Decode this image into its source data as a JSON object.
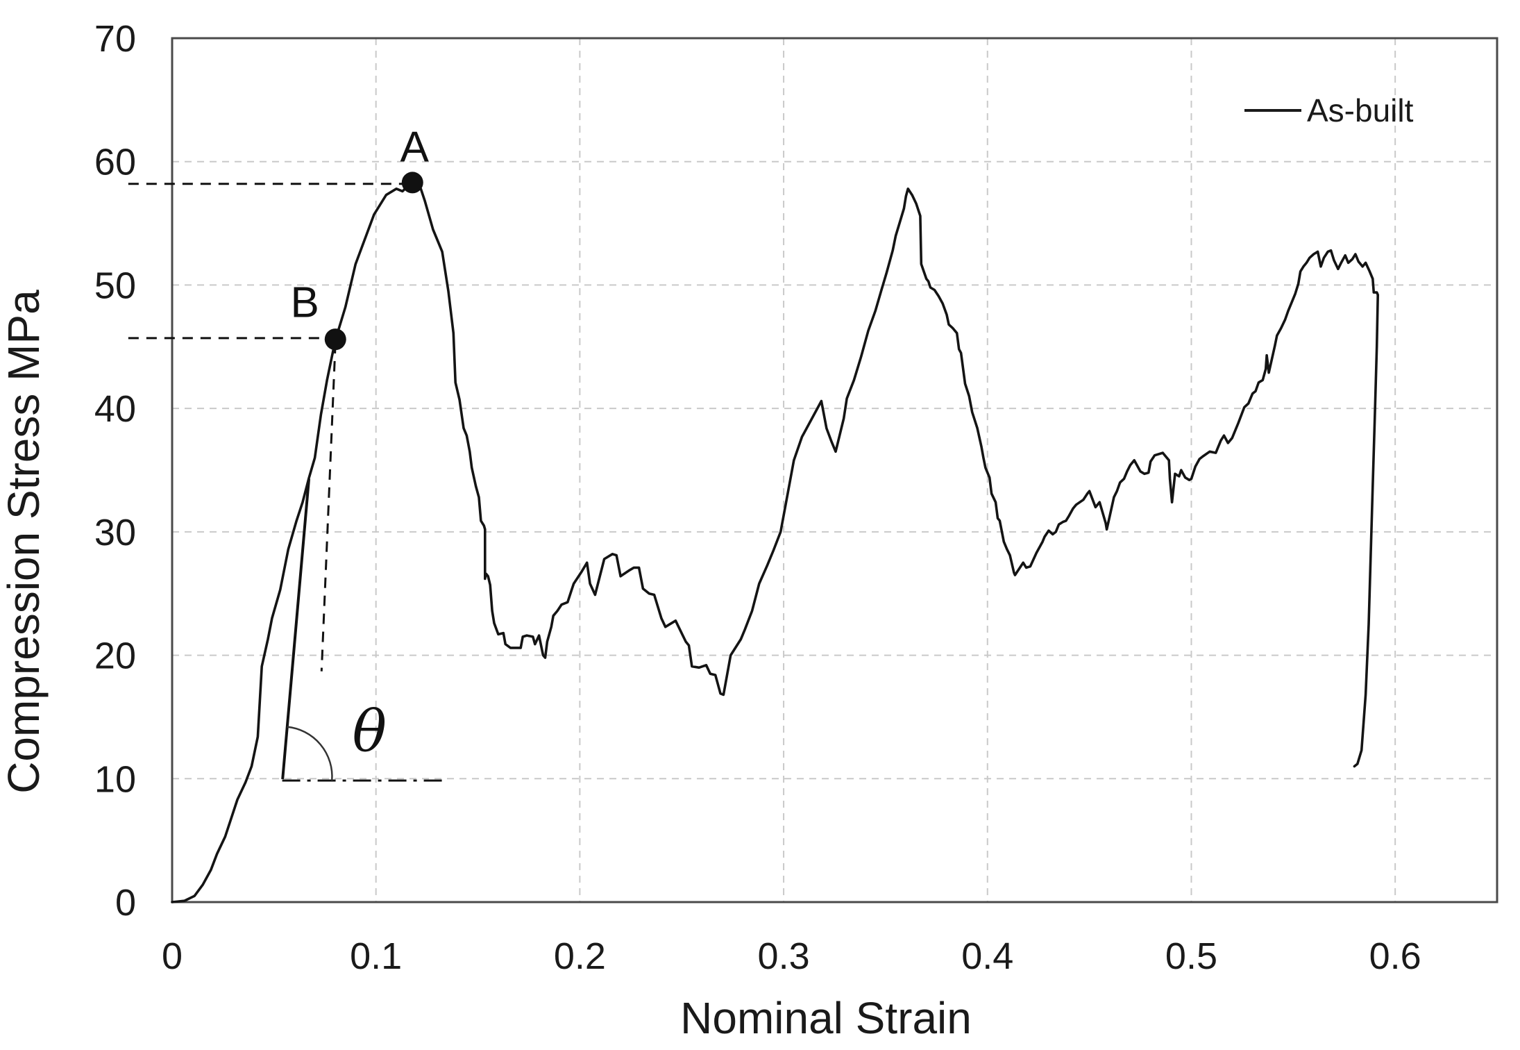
{
  "chart_data": {
    "type": "line",
    "title": "",
    "xlabel": "Nominal Strain",
    "ylabel": "Compression Stress MPa",
    "xlim": [
      0,
      0.65
    ],
    "ylim": [
      0,
      70
    ],
    "grid": {
      "visible": true,
      "style": "dashed",
      "color": "#c9c9c9"
    },
    "border_color": "#4a4a4a",
    "x_ticks": {
      "values": [
        0,
        0.1,
        0.2,
        0.3,
        0.4,
        0.5,
        0.6
      ],
      "labels": [
        "0",
        "0.1",
        "0.2",
        "0.3",
        "0.4",
        "0.5",
        "0.6"
      ]
    },
    "y_ticks": {
      "values": [
        0,
        10,
        20,
        30,
        40,
        50,
        60,
        70
      ],
      "labels": [
        "0",
        "10",
        "20",
        "30",
        "40",
        "50",
        "60",
        "70"
      ]
    },
    "legend": {
      "position": "top-right",
      "entries": [
        {
          "label": "As-built",
          "color": "#1a1a1a"
        }
      ]
    },
    "series": [
      {
        "name": "As-built",
        "color": "#141414",
        "points": [
          [
            0.0,
            0.0
          ],
          [
            0.006,
            0.1
          ],
          [
            0.011,
            0.5
          ],
          [
            0.015,
            1.4
          ],
          [
            0.019,
            2.6
          ],
          [
            0.022,
            3.9
          ],
          [
            0.026,
            5.3
          ],
          [
            0.029,
            6.8
          ],
          [
            0.032,
            8.3
          ],
          [
            0.036,
            9.7
          ],
          [
            0.039,
            11.0
          ],
          [
            0.042,
            13.4
          ],
          [
            0.044,
            19.1
          ],
          [
            0.047,
            21.3
          ],
          [
            0.049,
            23.0
          ],
          [
            0.053,
            25.3
          ],
          [
            0.057,
            28.6
          ],
          [
            0.061,
            30.9
          ],
          [
            0.064,
            32.4
          ],
          [
            0.067,
            34.3
          ],
          [
            0.07,
            36.0
          ],
          [
            0.073,
            39.5
          ],
          [
            0.076,
            42.3
          ],
          [
            0.08,
            45.5
          ],
          [
            0.085,
            48.2
          ],
          [
            0.09,
            51.7
          ],
          [
            0.099,
            55.7
          ],
          [
            0.105,
            57.3
          ],
          [
            0.11,
            57.8
          ],
          [
            0.113,
            57.6
          ],
          [
            0.1155,
            58.0
          ],
          [
            0.118,
            58.3
          ],
          [
            0.122,
            57.8
          ],
          [
            0.124,
            56.8
          ],
          [
            0.128,
            54.5
          ],
          [
            0.1325,
            52.7
          ],
          [
            0.1355,
            49.5
          ],
          [
            0.138,
            46.1
          ],
          [
            0.139,
            42.1
          ],
          [
            0.141,
            40.7
          ],
          [
            0.143,
            38.4
          ],
          [
            0.1445,
            37.8
          ],
          [
            0.146,
            36.5
          ],
          [
            0.147,
            35.2
          ],
          [
            0.149,
            33.7
          ],
          [
            0.1505,
            32.8
          ],
          [
            0.1515,
            30.9
          ],
          [
            0.153,
            30.5
          ],
          [
            0.1535,
            30.2
          ],
          [
            0.1535,
            26.2
          ],
          [
            0.154,
            26.6
          ],
          [
            0.155,
            26.4
          ],
          [
            0.156,
            25.7
          ],
          [
            0.157,
            23.6
          ],
          [
            0.158,
            22.6
          ],
          [
            0.16,
            21.7
          ],
          [
            0.1625,
            21.8
          ],
          [
            0.1635,
            20.9
          ],
          [
            0.166,
            20.6
          ],
          [
            0.171,
            20.6
          ],
          [
            0.172,
            21.5
          ],
          [
            0.174,
            21.6
          ],
          [
            0.177,
            21.5
          ],
          [
            0.178,
            20.9
          ],
          [
            0.18,
            21.6
          ],
          [
            0.182,
            20.0
          ],
          [
            0.183,
            19.8
          ],
          [
            0.184,
            21.1
          ],
          [
            0.186,
            22.3
          ],
          [
            0.187,
            23.2
          ],
          [
            0.189,
            23.6
          ],
          [
            0.191,
            24.1
          ],
          [
            0.194,
            24.3
          ],
          [
            0.196,
            25.3
          ],
          [
            0.197,
            25.8
          ],
          [
            0.201,
            26.8
          ],
          [
            0.2035,
            27.5
          ],
          [
            0.205,
            25.8
          ],
          [
            0.2075,
            24.9
          ],
          [
            0.212,
            27.8
          ],
          [
            0.216,
            28.2
          ],
          [
            0.218,
            28.1
          ],
          [
            0.22,
            26.4
          ],
          [
            0.2245,
            26.9
          ],
          [
            0.2265,
            27.1
          ],
          [
            0.229,
            27.1
          ],
          [
            0.231,
            25.4
          ],
          [
            0.234,
            25.0
          ],
          [
            0.2365,
            24.9
          ],
          [
            0.24,
            23.0
          ],
          [
            0.242,
            22.3
          ],
          [
            0.247,
            22.8
          ],
          [
            0.252,
            21.1
          ],
          [
            0.2535,
            20.8
          ],
          [
            0.255,
            19.1
          ],
          [
            0.2585,
            19.0
          ],
          [
            0.262,
            19.2
          ],
          [
            0.264,
            18.5
          ],
          [
            0.2665,
            18.4
          ],
          [
            0.269,
            16.9
          ],
          [
            0.2705,
            16.8
          ],
          [
            0.274,
            20.0
          ],
          [
            0.279,
            21.3
          ],
          [
            0.281,
            22.1
          ],
          [
            0.2845,
            23.6
          ],
          [
            0.288,
            25.8
          ],
          [
            0.292,
            27.3
          ],
          [
            0.295,
            28.5
          ],
          [
            0.2985,
            30.0
          ],
          [
            0.305,
            35.8
          ],
          [
            0.309,
            37.7
          ],
          [
            0.31,
            38.0
          ],
          [
            0.3185,
            40.6
          ],
          [
            0.321,
            38.4
          ],
          [
            0.3235,
            37.3
          ],
          [
            0.3255,
            36.5
          ],
          [
            0.3295,
            39.2
          ],
          [
            0.331,
            40.8
          ],
          [
            0.3345,
            42.3
          ],
          [
            0.338,
            44.2
          ],
          [
            0.3415,
            46.3
          ],
          [
            0.345,
            47.9
          ],
          [
            0.348,
            49.6
          ],
          [
            0.3505,
            51.0
          ],
          [
            0.3535,
            52.8
          ],
          [
            0.355,
            54.0
          ],
          [
            0.357,
            55.1
          ],
          [
            0.359,
            56.2
          ],
          [
            0.36,
            57.2
          ],
          [
            0.361,
            57.8
          ],
          [
            0.363,
            57.3
          ],
          [
            0.365,
            56.6
          ],
          [
            0.367,
            55.6
          ],
          [
            0.3675,
            51.7
          ],
          [
            0.37,
            50.5
          ],
          [
            0.371,
            50.3
          ],
          [
            0.372,
            49.8
          ],
          [
            0.374,
            49.6
          ],
          [
            0.376,
            49.1
          ],
          [
            0.378,
            48.5
          ],
          [
            0.38,
            47.6
          ],
          [
            0.381,
            46.8
          ],
          [
            0.383,
            46.5
          ],
          [
            0.385,
            46.1
          ],
          [
            0.386,
            44.8
          ],
          [
            0.387,
            44.5
          ],
          [
            0.389,
            42.0
          ],
          [
            0.391,
            41.0
          ],
          [
            0.3925,
            39.7
          ],
          [
            0.395,
            38.4
          ],
          [
            0.397,
            36.9
          ],
          [
            0.398,
            36.0
          ],
          [
            0.399,
            35.2
          ],
          [
            0.401,
            34.4
          ],
          [
            0.402,
            33.1
          ],
          [
            0.404,
            32.4
          ],
          [
            0.405,
            31.1
          ],
          [
            0.406,
            30.9
          ],
          [
            0.408,
            29.2
          ],
          [
            0.4095,
            28.6
          ],
          [
            0.411,
            28.1
          ],
          [
            0.413,
            26.7
          ],
          [
            0.4135,
            26.5
          ],
          [
            0.4175,
            27.5
          ],
          [
            0.419,
            27.1
          ],
          [
            0.421,
            27.2
          ],
          [
            0.424,
            28.3
          ],
          [
            0.427,
            29.2
          ],
          [
            0.428,
            29.6
          ],
          [
            0.43,
            30.1
          ],
          [
            0.432,
            29.8
          ],
          [
            0.4335,
            30.0
          ],
          [
            0.435,
            30.6
          ],
          [
            0.437,
            30.8
          ],
          [
            0.4385,
            30.9
          ],
          [
            0.44,
            31.3
          ],
          [
            0.442,
            31.9
          ],
          [
            0.4435,
            32.2
          ],
          [
            0.447,
            32.6
          ],
          [
            0.449,
            33.1
          ],
          [
            0.45,
            33.3
          ],
          [
            0.453,
            32.0
          ],
          [
            0.455,
            32.4
          ],
          [
            0.458,
            30.7
          ],
          [
            0.4585,
            30.2
          ],
          [
            0.46,
            31.3
          ],
          [
            0.462,
            32.8
          ],
          [
            0.4635,
            33.3
          ],
          [
            0.465,
            34.0
          ],
          [
            0.467,
            34.3
          ],
          [
            0.4685,
            34.9
          ],
          [
            0.47,
            35.4
          ],
          [
            0.472,
            35.8
          ],
          [
            0.475,
            34.9
          ],
          [
            0.477,
            34.7
          ],
          [
            0.479,
            34.8
          ],
          [
            0.48,
            35.7
          ],
          [
            0.482,
            36.2
          ],
          [
            0.486,
            36.4
          ],
          [
            0.489,
            35.8
          ],
          [
            0.4895,
            34.3
          ],
          [
            0.4905,
            32.4
          ],
          [
            0.492,
            34.7
          ],
          [
            0.494,
            34.5
          ],
          [
            0.495,
            35.0
          ],
          [
            0.497,
            34.4
          ],
          [
            0.499,
            34.2
          ],
          [
            0.5,
            34.3
          ],
          [
            0.502,
            35.3
          ],
          [
            0.504,
            35.9
          ],
          [
            0.5055,
            36.1
          ],
          [
            0.509,
            36.5
          ],
          [
            0.512,
            36.4
          ],
          [
            0.5145,
            37.4
          ],
          [
            0.516,
            37.8
          ],
          [
            0.518,
            37.2
          ],
          [
            0.52,
            37.6
          ],
          [
            0.523,
            38.8
          ],
          [
            0.526,
            40.1
          ],
          [
            0.528,
            40.4
          ],
          [
            0.53,
            41.2
          ],
          [
            0.5315,
            41.4
          ],
          [
            0.533,
            42.1
          ],
          [
            0.535,
            42.3
          ],
          [
            0.5365,
            43.2
          ],
          [
            0.537,
            44.3
          ],
          [
            0.538,
            42.9
          ],
          [
            0.541,
            45.1
          ],
          [
            0.542,
            45.9
          ],
          [
            0.544,
            46.5
          ],
          [
            0.546,
            47.2
          ],
          [
            0.5475,
            47.9
          ],
          [
            0.549,
            48.5
          ],
          [
            0.551,
            49.3
          ],
          [
            0.5525,
            50.1
          ],
          [
            0.5535,
            51.1
          ],
          [
            0.555,
            51.5
          ],
          [
            0.5565,
            51.8
          ],
          [
            0.558,
            52.2
          ],
          [
            0.56,
            52.5
          ],
          [
            0.562,
            52.7
          ],
          [
            0.5635,
            51.5
          ],
          [
            0.565,
            52.2
          ],
          [
            0.567,
            52.7
          ],
          [
            0.5685,
            52.8
          ],
          [
            0.57,
            52.0
          ],
          [
            0.572,
            51.3
          ],
          [
            0.5735,
            51.8
          ],
          [
            0.5755,
            52.4
          ],
          [
            0.577,
            51.8
          ],
          [
            0.579,
            52.1
          ],
          [
            0.5805,
            52.5
          ],
          [
            0.582,
            51.9
          ],
          [
            0.584,
            51.5
          ],
          [
            0.5855,
            51.8
          ],
          [
            0.5875,
            51.1
          ],
          [
            0.589,
            50.5
          ],
          [
            0.5895,
            49.4
          ],
          [
            0.591,
            49.4
          ],
          [
            0.5915,
            49.2
          ],
          [
            0.591,
            45.0
          ],
          [
            0.59,
            39.3
          ],
          [
            0.589,
            33.7
          ],
          [
            0.588,
            28.1
          ],
          [
            0.587,
            22.5
          ],
          [
            0.5855,
            16.8
          ],
          [
            0.5835,
            12.3
          ],
          [
            0.5815,
            11.2
          ],
          [
            0.58,
            11.0
          ]
        ]
      }
    ],
    "annotations": {
      "point_A": {
        "label": "A",
        "x": 0.1179,
        "y": 58.3,
        "label_x": 0.1189,
        "label_y": 61.2,
        "guide_y": 58.2,
        "guide_x1": -0.0215,
        "guide_x2": 0.1148
      },
      "point_B": {
        "label": "B",
        "x": 0.0801,
        "y": 45.6,
        "label_x": 0.0651,
        "label_y": 48.6,
        "guide_y": 45.7,
        "guide_x1": -0.0215,
        "guide_x2": 0.0756,
        "drop_line": {
          "x1": 0.0801,
          "y1": 45.3,
          "x2": 0.0733,
          "y2": 18.7
        }
      },
      "tangent_line": {
        "x1": 0.0542,
        "y1": 9.96,
        "x2": 0.0671,
        "y2": 34.3
      },
      "angle_base_line": {
        "y": 9.85,
        "x1": 0.054,
        "x2": 0.1325
      },
      "angle_arc": {
        "x1": 0.0564,
        "y1": 14.2,
        "x2": 0.0784,
        "y2": 9.85,
        "radius_px": 72
      },
      "theta": {
        "label": "θ",
        "x": 0.0968,
        "y": 13.7
      }
    }
  }
}
